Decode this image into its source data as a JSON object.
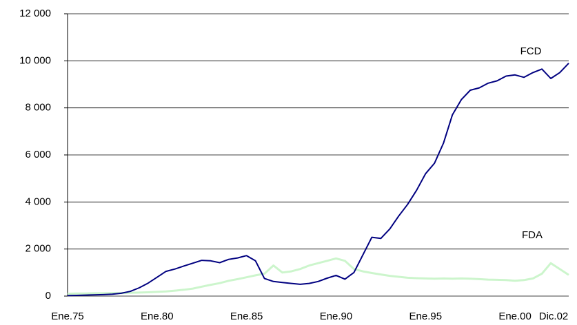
{
  "chart_data": {
    "type": "line",
    "categories": [
      "Ene.75",
      null,
      null,
      null,
      null,
      null,
      null,
      null,
      null,
      null,
      "Ene.80",
      null,
      null,
      null,
      null,
      null,
      null,
      null,
      null,
      null,
      "Ene.85",
      null,
      null,
      null,
      null,
      null,
      null,
      null,
      null,
      null,
      "Ene.90",
      null,
      null,
      null,
      null,
      null,
      null,
      null,
      null,
      null,
      "Ene.95",
      null,
      null,
      null,
      null,
      null,
      null,
      null,
      null,
      null,
      "Ene.00",
      null,
      null,
      null,
      null,
      null,
      "Dic.02"
    ],
    "series": [
      {
        "name": "FCD",
        "color": "#000080",
        "values": [
          20,
          30,
          40,
          50,
          60,
          80,
          120,
          200,
          350,
          550,
          800,
          1050,
          1150,
          1280,
          1400,
          1520,
          1500,
          1420,
          1560,
          1620,
          1720,
          1500,
          750,
          620,
          580,
          540,
          500,
          540,
          620,
          760,
          880,
          720,
          1000,
          1750,
          2500,
          2450,
          2850,
          3400,
          3900,
          4500,
          5200,
          5650,
          6500,
          7700,
          8350,
          8750,
          8850,
          9050,
          9150,
          9350,
          9400,
          9300,
          9500,
          9650,
          9250,
          9500,
          9900
        ]
      },
      {
        "name": "FDA",
        "color": "#ccf5cc",
        "values": [
          100,
          110,
          110,
          120,
          120,
          130,
          130,
          140,
          150,
          160,
          180,
          200,
          230,
          270,
          320,
          400,
          480,
          550,
          650,
          720,
          800,
          880,
          950,
          1300,
          1000,
          1050,
          1150,
          1300,
          1400,
          1500,
          1600,
          1500,
          1150,
          1050,
          980,
          920,
          860,
          820,
          780,
          760,
          750,
          740,
          750,
          740,
          750,
          740,
          720,
          700,
          690,
          680,
          650,
          680,
          750,
          950,
          1400,
          1150,
          900
        ]
      }
    ],
    "ylim": [
      0,
      12000
    ],
    "yticks": [
      0,
      {
        "value": 2000,
        "label": "2 000"
      },
      {
        "value": 4000,
        "label": "4 000"
      },
      {
        "value": 6000,
        "label": "6 000"
      },
      {
        "value": 8000,
        "label": "8 000"
      },
      {
        "value": 10000,
        "label": "10 000"
      },
      {
        "value": 12000,
        "label": "12 000"
      }
    ],
    "grid": true
  }
}
